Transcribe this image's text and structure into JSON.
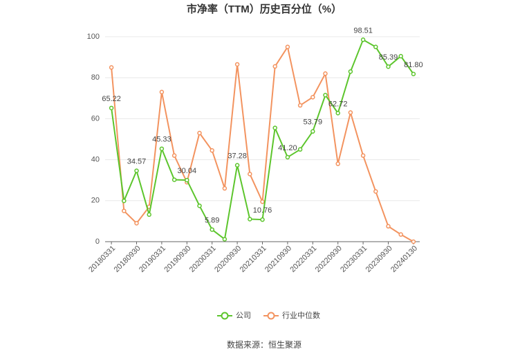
{
  "chart_data": {
    "type": "line",
    "title": "市净率（TTM）历史百分位（%）",
    "categories": [
      "20180331",
      null,
      "20180930",
      null,
      "20190331",
      null,
      "20190930",
      null,
      "20200331",
      null,
      "20200930",
      null,
      "20210331",
      null,
      "20210930",
      null,
      "20220331",
      null,
      "20220930",
      null,
      "20230331",
      null,
      "20230930",
      null,
      "20240130"
    ],
    "series": [
      {
        "name": "公司",
        "color": "#5cc52c",
        "values": [
          65.22,
          19.9,
          34.57,
          13.2,
          45.33,
          30.2,
          30.04,
          17.5,
          5.89,
          1.2,
          37.28,
          11,
          10.76,
          55.5,
          41.2,
          45,
          53.79,
          71.5,
          62.72,
          83,
          98.51,
          95,
          85.39,
          90.5,
          81.8
        ],
        "value_labels": [
          "65.22",
          null,
          "34.57",
          null,
          "45.33",
          null,
          "30.04",
          null,
          "5.89",
          null,
          "37.28",
          null,
          "10.76",
          null,
          "41.20",
          null,
          "53.79",
          null,
          "62.72",
          null,
          "98.51",
          null,
          "85.39",
          null,
          "81.80"
        ]
      },
      {
        "name": "行业中位数",
        "color": "#f3935f",
        "values": [
          85,
          15,
          9,
          17,
          73,
          42,
          29,
          53,
          44.5,
          26,
          86.5,
          33,
          19.5,
          85.5,
          95,
          66.5,
          70.5,
          82,
          38,
          63,
          42,
          24.5,
          7.5,
          3.5,
          0
        ]
      }
    ],
    "ylim": [
      0,
      100
    ],
    "yticks": [
      0,
      20,
      40,
      60,
      80,
      100
    ],
    "grid": true,
    "source": "数据来源：恒生聚源"
  }
}
